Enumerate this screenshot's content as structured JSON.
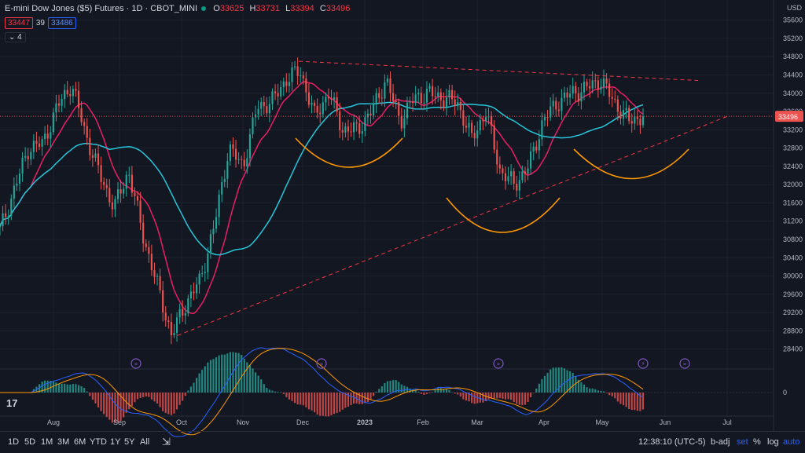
{
  "legend": {
    "title": "E-mini Dow Jones ($5) Futures · 1D · CBOT_MINI",
    "open_label": "O",
    "open": "33625",
    "high_label": "H",
    "high": "33731",
    "low_label": "L",
    "low": "33394",
    "close_label": "C",
    "close": "33496",
    "pill_red": "33447",
    "spread": "39",
    "pill_blue": "33486",
    "collapse": "4"
  },
  "price_axis": {
    "currency": "USD",
    "last_price": "33496"
  },
  "toolbar": {
    "ranges": [
      "1D",
      "5D",
      "1M",
      "3M",
      "6M",
      "YTD",
      "1Y",
      "5Y",
      "All"
    ],
    "time": "12:38:10 (UTC-5)",
    "badj": "b-adj",
    "set": "set",
    "pct": "%",
    "log": "log",
    "auto": "auto"
  },
  "colors": {
    "background": "#131722",
    "up": "#26a69a",
    "down": "#ef5350",
    "ma_fast": "#e91e63",
    "ma_slow": "#26c6da",
    "trendline": "#f23645",
    "arcs": "#ff9800",
    "event_icon": "#7e57c2"
  },
  "icons": [
    "event-arrow-icon",
    "event-arrow-icon",
    "event-arrow-icon",
    "dividend-lightning-icon",
    "event-arrow-icon",
    "tradingview-logo-icon"
  ],
  "chart_data": {
    "type": "candlestick",
    "title": "E-mini Dow Jones ($5) Futures · 1D · CBOT_MINI",
    "ylim": [
      28000,
      35800
    ],
    "y_ticks": [
      28400,
      28800,
      29200,
      29600,
      30000,
      30400,
      30800,
      31200,
      31600,
      32000,
      32400,
      32800,
      33200,
      33600,
      34000,
      34400,
      34800,
      35200,
      35600
    ],
    "x_ticks": [
      "Aug",
      "Sep",
      "Oct",
      "Nov",
      "Dec",
      "2023",
      "Feb",
      "Mar",
      "Apr",
      "May",
      "Jun",
      "Jul"
    ],
    "series": [
      {
        "name": "Price (daily close, approx.)",
        "points": [
          {
            "t": "Jul 14",
            "v": 31000
          },
          {
            "t": "Jul 22",
            "v": 31900
          },
          {
            "t": "Jul 29",
            "v": 32800
          },
          {
            "t": "Aug 5",
            "v": 32900
          },
          {
            "t": "Aug 12",
            "v": 33700
          },
          {
            "t": "Aug 16",
            "v": 34200
          },
          {
            "t": "Aug 22",
            "v": 33100
          },
          {
            "t": "Aug 29",
            "v": 32200
          },
          {
            "t": "Sep 2",
            "v": 31500
          },
          {
            "t": "Sep 12",
            "v": 32300
          },
          {
            "t": "Sep 16",
            "v": 30900
          },
          {
            "t": "Sep 23",
            "v": 29800
          },
          {
            "t": "Sep 30",
            "v": 28700
          },
          {
            "t": "Oct 7",
            "v": 29400
          },
          {
            "t": "Oct 13",
            "v": 29900
          },
          {
            "t": "Oct 21",
            "v": 31100
          },
          {
            "t": "Oct 28",
            "v": 32800
          },
          {
            "t": "Nov 4",
            "v": 32400
          },
          {
            "t": "Nov 10",
            "v": 33700
          },
          {
            "t": "Nov 18",
            "v": 33800
          },
          {
            "t": "Nov 25",
            "v": 34300
          },
          {
            "t": "Dec 1",
            "v": 34500
          },
          {
            "t": "Dec 9",
            "v": 33500
          },
          {
            "t": "Dec 13",
            "v": 34000
          },
          {
            "t": "Dec 22",
            "v": 33200
          },
          {
            "t": "Dec 30",
            "v": 33200
          },
          {
            "t": "Jan 6",
            "v": 33600
          },
          {
            "t": "Jan 13",
            "v": 34300
          },
          {
            "t": "Jan 20",
            "v": 33400
          },
          {
            "t": "Jan 27",
            "v": 33900
          },
          {
            "t": "Feb 3",
            "v": 34000
          },
          {
            "t": "Feb 10",
            "v": 33900
          },
          {
            "t": "Feb 17",
            "v": 33800
          },
          {
            "t": "Feb 24",
            "v": 33000
          },
          {
            "t": "Mar 3",
            "v": 33600
          },
          {
            "t": "Mar 10",
            "v": 32300
          },
          {
            "t": "Mar 17",
            "v": 32000
          },
          {
            "t": "Mar 24",
            "v": 32400
          },
          {
            "t": "Mar 31",
            "v": 33400
          },
          {
            "t": "Apr 7",
            "v": 33800
          },
          {
            "t": "Apr 14",
            "v": 34000
          },
          {
            "t": "Apr 21",
            "v": 34100
          },
          {
            "t": "Apr 28",
            "v": 34300
          },
          {
            "t": "May 5",
            "v": 33800
          },
          {
            "t": "May 12",
            "v": 33400
          },
          {
            "t": "May 19",
            "v": 33500
          }
        ]
      },
      {
        "name": "MA fast",
        "color": "#e91e63"
      },
      {
        "name": "MA slow",
        "color": "#26c6da"
      }
    ],
    "annotations": {
      "resistance_line": [
        {
          "t": "Nov 30",
          "v": 34700
        },
        {
          "t": "Jun 20",
          "v": 34300
        }
      ],
      "support_line": [
        {
          "t": "Sep 30",
          "v": 28700
        },
        {
          "t": "Jul 1",
          "v": 33500
        }
      ],
      "arcs": [
        "Dec–Jan",
        "Mar",
        "May"
      ]
    },
    "grid": true,
    "legend": "top-left"
  }
}
